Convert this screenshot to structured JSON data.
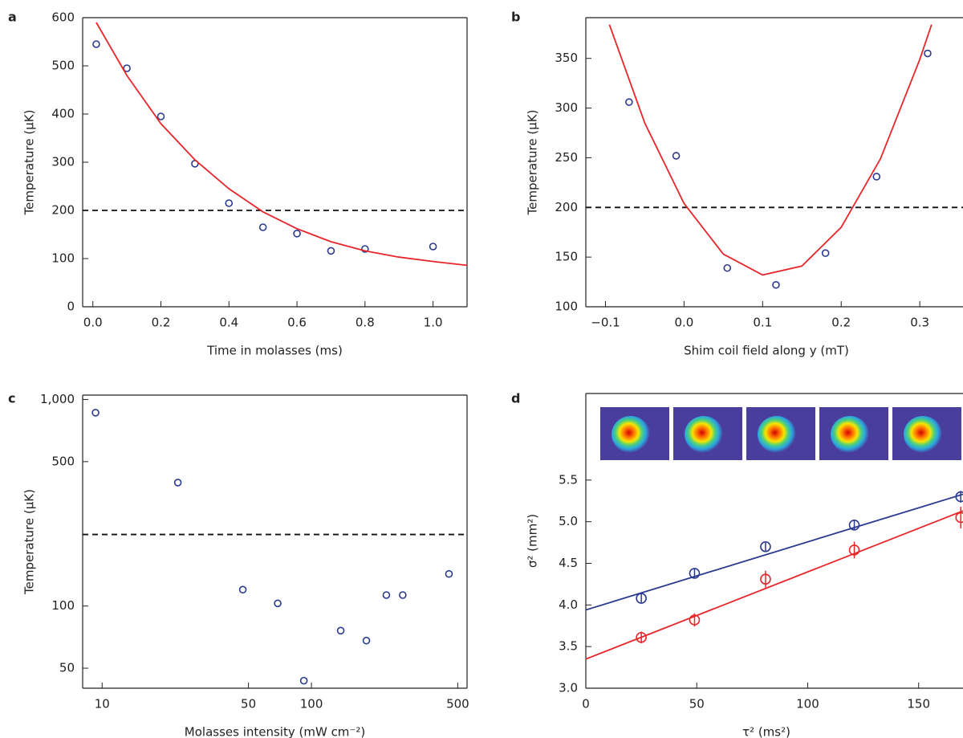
{
  "chart_data": [
    {
      "type": "scatter",
      "panel_label": "a",
      "xlabel": "Time in molasses (ms)",
      "ylabel": "Temperature (µK)",
      "xlim": [
        -0.03,
        1.1
      ],
      "ylim": [
        0,
        600
      ],
      "xticks": [
        {
          "value": 0,
          "label": "0.0"
        },
        0.2,
        0.4,
        0.6,
        0.8,
        {
          "value": 1,
          "label": "1.0"
        }
      ],
      "yticks": [
        0,
        100,
        200,
        300,
        400,
        500,
        600
      ],
      "hline": 200,
      "series": [
        {
          "color": "#2b3990",
          "marker": "circle",
          "x": [
            0.01,
            0.1,
            0.2,
            0.3,
            0.4,
            0.5,
            0.6,
            0.7,
            0.8,
            1.0
          ],
          "values": [
            545,
            495,
            395,
            297,
            215,
            165,
            152,
            116,
            120,
            125
          ]
        },
        {
          "color": "#e8262a",
          "marker": "line",
          "x": [
            0.01,
            0.1,
            0.2,
            0.3,
            0.4,
            0.5,
            0.6,
            0.7,
            0.8,
            0.9,
            1.0,
            1.1
          ],
          "values": [
            590,
            480,
            380,
            305,
            245,
            197,
            162,
            135,
            116,
            103,
            94,
            86
          ]
        }
      ]
    },
    {
      "type": "scatter",
      "panel_label": "b",
      "xlabel": "Shim coil field along y (mT)",
      "ylabel": "Temperature (µK)",
      "xlim": [
        -0.125,
        0.355
      ],
      "ylim": [
        100,
        391
      ],
      "xticks": [
        {
          "value": -0.1,
          "label": "−0.1"
        },
        {
          "value": 0,
          "label": "0.0"
        },
        0.1,
        0.2,
        0.3
      ],
      "yticks": [
        100,
        150,
        200,
        250,
        300,
        350
      ],
      "hline": 200,
      "series": [
        {
          "color": "#2b3990",
          "marker": "circle",
          "x": [
            -0.07,
            -0.01,
            0.055,
            0.117,
            0.18,
            0.245,
            0.31
          ],
          "values": [
            306,
            252,
            139,
            122,
            154,
            231,
            355
          ]
        },
        {
          "color": "#e8262a",
          "marker": "line",
          "x": [
            -0.095,
            -0.05,
            0,
            0.05,
            0.1,
            0.15,
            0.2,
            0.25,
            0.3,
            0.315
          ],
          "values": [
            384,
            285,
            204,
            153,
            132,
            141,
            180,
            249,
            349,
            384
          ]
        }
      ]
    },
    {
      "type": "scatter",
      "panel_label": "c",
      "xlabel": "Molasses intensity (mW cm⁻²)",
      "ylabel": "Temperature (µK)",
      "xscale": "log",
      "yscale": "log",
      "xlim": [
        8.07,
        554
      ],
      "ylim": [
        40,
        1050
      ],
      "xticks": [
        10,
        50,
        100,
        500
      ],
      "yticks": [
        50,
        100,
        500,
        {
          "value": 1000,
          "label": "1,000"
        }
      ],
      "hline": 222,
      "series": [
        {
          "color": "#2b3990",
          "marker": "circle",
          "x": [
            9.3,
            23,
            47,
            69,
            92,
            138,
            183,
            228,
            273,
            454
          ],
          "values": [
            863,
            396,
            120,
            103,
            43.5,
            76,
            68,
            113,
            113,
            143
          ]
        }
      ]
    },
    {
      "type": "scatter",
      "panel_label": "d",
      "xlabel": "τ² (ms²)",
      "ylabel": "σ² (mm²)",
      "xlim": [
        0,
        170
      ],
      "ylim": [
        3,
        6.54
      ],
      "xticks": [
        0,
        50,
        100,
        150
      ],
      "yticks": [
        {
          "value": 3,
          "label": "3.0"
        },
        3.5,
        {
          "value": 4,
          "label": "4.0"
        },
        4.5,
        {
          "value": 5,
          "label": "5.0"
        },
        5.5
      ],
      "series": [
        {
          "color": "#2b3990",
          "marker": "circle",
          "x": [
            25,
            49,
            81,
            121,
            169
          ],
          "values": [
            4.08,
            4.38,
            4.7,
            4.96,
            5.3
          ],
          "errors": [
            0.05,
            0.05,
            0.05,
            0.06,
            0.07
          ]
        },
        {
          "color": "#e8262a",
          "marker": "circle",
          "x": [
            25,
            49,
            81,
            121,
            169
          ],
          "values": [
            3.61,
            3.82,
            4.31,
            4.66,
            5.05
          ],
          "errors": [
            0.07,
            0.08,
            0.1,
            0.1,
            0.13
          ]
        },
        {
          "color": "#2b3990",
          "marker": "line",
          "x": [
            0,
            170
          ],
          "values": [
            3.94,
            5.33
          ]
        },
        {
          "color": "#e8262a",
          "marker": "line",
          "x": [
            0,
            170
          ],
          "values": [
            3.35,
            5.13
          ]
        }
      ]
    }
  ]
}
